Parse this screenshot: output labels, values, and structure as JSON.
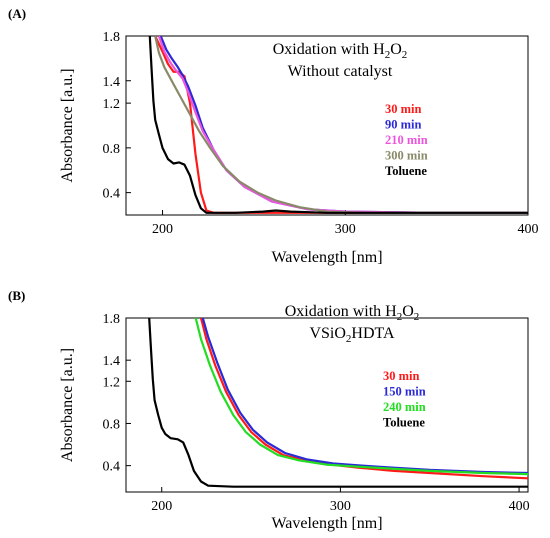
{
  "chart_data": [
    {
      "type": "line",
      "panel": "(A)",
      "title_lines": [
        {
          "main": "Oxidation with H",
          "sub": "2",
          "after": "O",
          "sub2": "2"
        },
        {
          "main": "Without catalyst",
          "sub": "",
          "after": "",
          "sub2": ""
        }
      ],
      "xlabel": "Wavelength [nm]",
      "ylabel": "Absorbance [a.u.]",
      "xlim": [
        180,
        400
      ],
      "ylim": [
        0.2,
        1.8
      ],
      "xticks": [
        200,
        300,
        400
      ],
      "yticks": [
        0.4,
        0.8,
        1.2,
        1.4,
        1.8
      ],
      "ytick_labels": [
        "0.4",
        "0.8",
        "1.2",
        "1.4",
        "1.8"
      ],
      "grid": false,
      "legend_position": "right",
      "series": [
        {
          "name": "30 min",
          "color": "#ff1a1a",
          "points": [
            [
              196,
              1.8
            ],
            [
              200,
              1.66
            ],
            [
              203,
              1.55
            ],
            [
              206,
              1.48
            ],
            [
              209,
              1.48
            ],
            [
              212,
              1.44
            ],
            [
              215,
              1.2
            ],
            [
              218,
              0.75
            ],
            [
              221,
              0.4
            ],
            [
              224,
              0.24
            ],
            [
              228,
              0.22
            ],
            [
              260,
              0.22
            ],
            [
              300,
              0.22
            ],
            [
              350,
              0.22
            ],
            [
              400,
              0.22
            ]
          ]
        },
        {
          "name": "90 min",
          "color": "#2a2ad6",
          "points": [
            [
              199,
              1.8
            ],
            [
              202,
              1.68
            ],
            [
              205,
              1.6
            ],
            [
              208,
              1.53
            ],
            [
              211,
              1.45
            ],
            [
              214,
              1.35
            ],
            [
              218,
              1.18
            ],
            [
              222,
              0.98
            ],
            [
              228,
              0.78
            ],
            [
              235,
              0.6
            ],
            [
              245,
              0.45
            ],
            [
              260,
              0.32
            ],
            [
              280,
              0.25
            ],
            [
              300,
              0.23
            ],
            [
              350,
              0.22
            ],
            [
              400,
              0.22
            ]
          ]
        },
        {
          "name": "210 min",
          "color": "#ee55dd",
          "points": [
            [
              198,
              1.8
            ],
            [
              201,
              1.66
            ],
            [
              204,
              1.57
            ],
            [
              207,
              1.5
            ],
            [
              211,
              1.42
            ],
            [
              214,
              1.3
            ],
            [
              218,
              1.12
            ],
            [
              222,
              0.95
            ],
            [
              228,
              0.78
            ],
            [
              235,
              0.6
            ],
            [
              245,
              0.45
            ],
            [
              260,
              0.32
            ],
            [
              280,
              0.25
            ],
            [
              300,
              0.23
            ],
            [
              350,
              0.22
            ],
            [
              400,
              0.22
            ]
          ]
        },
        {
          "name": "300 min",
          "color": "#8a8a6a",
          "points": [
            [
              196,
              1.8
            ],
            [
              198,
              1.65
            ],
            [
              201,
              1.52
            ],
            [
              205,
              1.4
            ],
            [
              210,
              1.25
            ],
            [
              215,
              1.1
            ],
            [
              220,
              0.95
            ],
            [
              226,
              0.8
            ],
            [
              233,
              0.64
            ],
            [
              242,
              0.5
            ],
            [
              252,
              0.4
            ],
            [
              262,
              0.33
            ],
            [
              275,
              0.27
            ],
            [
              290,
              0.23
            ],
            [
              310,
              0.22
            ],
            [
              350,
              0.22
            ],
            [
              400,
              0.22
            ]
          ]
        },
        {
          "name": "Toluene",
          "color": "#000000",
          "points": [
            [
              193,
              1.8
            ],
            [
              194,
              1.5
            ],
            [
              195,
              1.22
            ],
            [
              196,
              1.05
            ],
            [
              198,
              0.92
            ],
            [
              200,
              0.8
            ],
            [
              203,
              0.7
            ],
            [
              206,
              0.66
            ],
            [
              209,
              0.67
            ],
            [
              212,
              0.65
            ],
            [
              215,
              0.55
            ],
            [
              218,
              0.38
            ],
            [
              221,
              0.26
            ],
            [
              224,
              0.22
            ],
            [
              240,
              0.22
            ],
            [
              255,
              0.23
            ],
            [
              262,
              0.24
            ],
            [
              270,
              0.23
            ],
            [
              290,
              0.22
            ],
            [
              350,
              0.22
            ],
            [
              400,
              0.22
            ]
          ]
        }
      ]
    },
    {
      "type": "line",
      "panel": "(B)",
      "title_lines": [
        {
          "main": "Oxidation with H",
          "sub": "2",
          "after": "O",
          "sub2": "2"
        },
        {
          "main": "VSiO",
          "sub": "2",
          "after": "HDTA",
          "sub2": ""
        }
      ],
      "xlabel": "Wavelength [nm]",
      "ylabel": "Absorbance [a.u.]",
      "xlim": [
        180,
        405
      ],
      "ylim": [
        0.15,
        1.8
      ],
      "xticks": [
        200,
        300,
        400
      ],
      "yticks": [
        0.4,
        0.8,
        1.2,
        1.4,
        1.8
      ],
      "ytick_labels": [
        "0.4",
        "0.8",
        "1.2",
        "1.4",
        "1.8"
      ],
      "grid": false,
      "legend_position": "right",
      "series": [
        {
          "name": "30 min",
          "color": "#ff1a1a",
          "points": [
            [
              222,
              1.8
            ],
            [
              225,
              1.6
            ],
            [
              230,
              1.35
            ],
            [
              236,
              1.1
            ],
            [
              243,
              0.88
            ],
            [
              250,
              0.72
            ],
            [
              258,
              0.6
            ],
            [
              268,
              0.5
            ],
            [
              280,
              0.45
            ],
            [
              295,
              0.41
            ],
            [
              310,
              0.38
            ],
            [
              330,
              0.35
            ],
            [
              350,
              0.33
            ],
            [
              380,
              0.3
            ],
            [
              405,
              0.28
            ]
          ]
        },
        {
          "name": "150 min",
          "color": "#2a2ad6",
          "points": [
            [
              223,
              1.8
            ],
            [
              226,
              1.62
            ],
            [
              231,
              1.38
            ],
            [
              237,
              1.12
            ],
            [
              244,
              0.9
            ],
            [
              251,
              0.74
            ],
            [
              259,
              0.62
            ],
            [
              269,
              0.52
            ],
            [
              281,
              0.46
            ],
            [
              296,
              0.42
            ],
            [
              312,
              0.4
            ],
            [
              330,
              0.38
            ],
            [
              350,
              0.36
            ],
            [
              380,
              0.34
            ],
            [
              405,
              0.33
            ]
          ]
        },
        {
          "name": "240 min",
          "color": "#22dd22",
          "points": [
            [
              219,
              1.8
            ],
            [
              222,
              1.6
            ],
            [
              227,
              1.35
            ],
            [
              233,
              1.1
            ],
            [
              240,
              0.88
            ],
            [
              247,
              0.72
            ],
            [
              255,
              0.6
            ],
            [
              265,
              0.5
            ],
            [
              277,
              0.45
            ],
            [
              292,
              0.41
            ],
            [
              310,
              0.39
            ],
            [
              330,
              0.37
            ],
            [
              350,
              0.35
            ],
            [
              380,
              0.33
            ],
            [
              405,
              0.32
            ]
          ]
        },
        {
          "name": "Toluene",
          "color": "#000000",
          "points": [
            [
              193,
              1.8
            ],
            [
              194,
              1.5
            ],
            [
              195,
              1.22
            ],
            [
              196,
              1.02
            ],
            [
              198,
              0.88
            ],
            [
              200,
              0.76
            ],
            [
              202,
              0.7
            ],
            [
              205,
              0.66
            ],
            [
              209,
              0.65
            ],
            [
              212,
              0.62
            ],
            [
              215,
              0.5
            ],
            [
              218,
              0.35
            ],
            [
              222,
              0.25
            ],
            [
              226,
              0.21
            ],
            [
              240,
              0.2
            ],
            [
              270,
              0.2
            ],
            [
              300,
              0.2
            ],
            [
              350,
              0.2
            ],
            [
              405,
              0.2
            ]
          ]
        }
      ]
    }
  ]
}
